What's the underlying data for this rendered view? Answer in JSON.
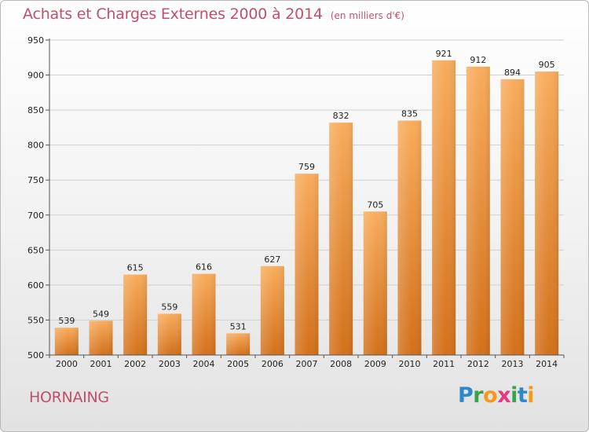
{
  "header": {
    "title": "Achats et Charges Externes 2000 à 2014",
    "unit": "(en milliers d'€)"
  },
  "footer": {
    "city": "HORNAING",
    "logo": [
      "P",
      "r",
      "o",
      "x",
      "i",
      "t",
      "i"
    ]
  },
  "chart_data": {
    "type": "bar",
    "title": "Achats et Charges Externes 2000 à 2014",
    "subtitle": "(en milliers d'€)",
    "categories": [
      "2000",
      "2001",
      "2002",
      "2003",
      "2004",
      "2005",
      "2006",
      "2007",
      "2008",
      "2009",
      "2010",
      "2011",
      "2012",
      "2013",
      "2014"
    ],
    "values": [
      539,
      549,
      615,
      559,
      616,
      531,
      627,
      759,
      832,
      705,
      835,
      921,
      912,
      894,
      905
    ],
    "xlabel": "",
    "ylabel": "",
    "ylim": [
      500,
      950
    ],
    "yticks": [
      500,
      550,
      600,
      650,
      700,
      750,
      800,
      850,
      900,
      950
    ],
    "grid": true,
    "bar_color": "#f08b26",
    "grid_color": "#d0d0d0"
  }
}
